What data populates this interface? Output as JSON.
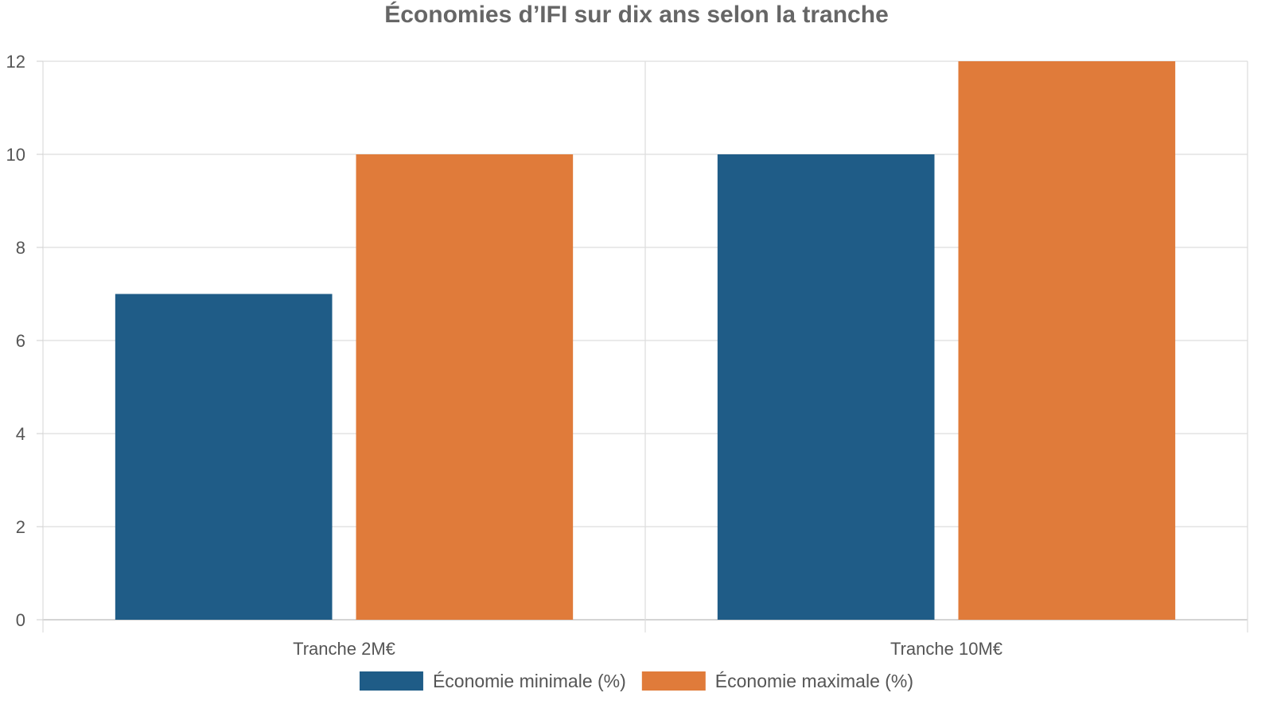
{
  "chart_data": {
    "type": "bar",
    "title": "Économies d’IFI sur dix ans selon la tranche",
    "xlabel": "",
    "ylabel": "",
    "categories": [
      "Tranche 2M€",
      "Tranche 10M€"
    ],
    "series": [
      {
        "name": "Économie minimale (%)",
        "values": [
          7,
          10
        ],
        "color": "#1f5c87"
      },
      {
        "name": "Économie maximale (%)",
        "values": [
          10,
          12
        ],
        "color": "#e07b3a"
      }
    ],
    "ylim": [
      0,
      12
    ],
    "yticks": [
      0,
      2,
      4,
      6,
      8,
      10,
      12
    ],
    "grid": true,
    "legend": "bottom"
  }
}
